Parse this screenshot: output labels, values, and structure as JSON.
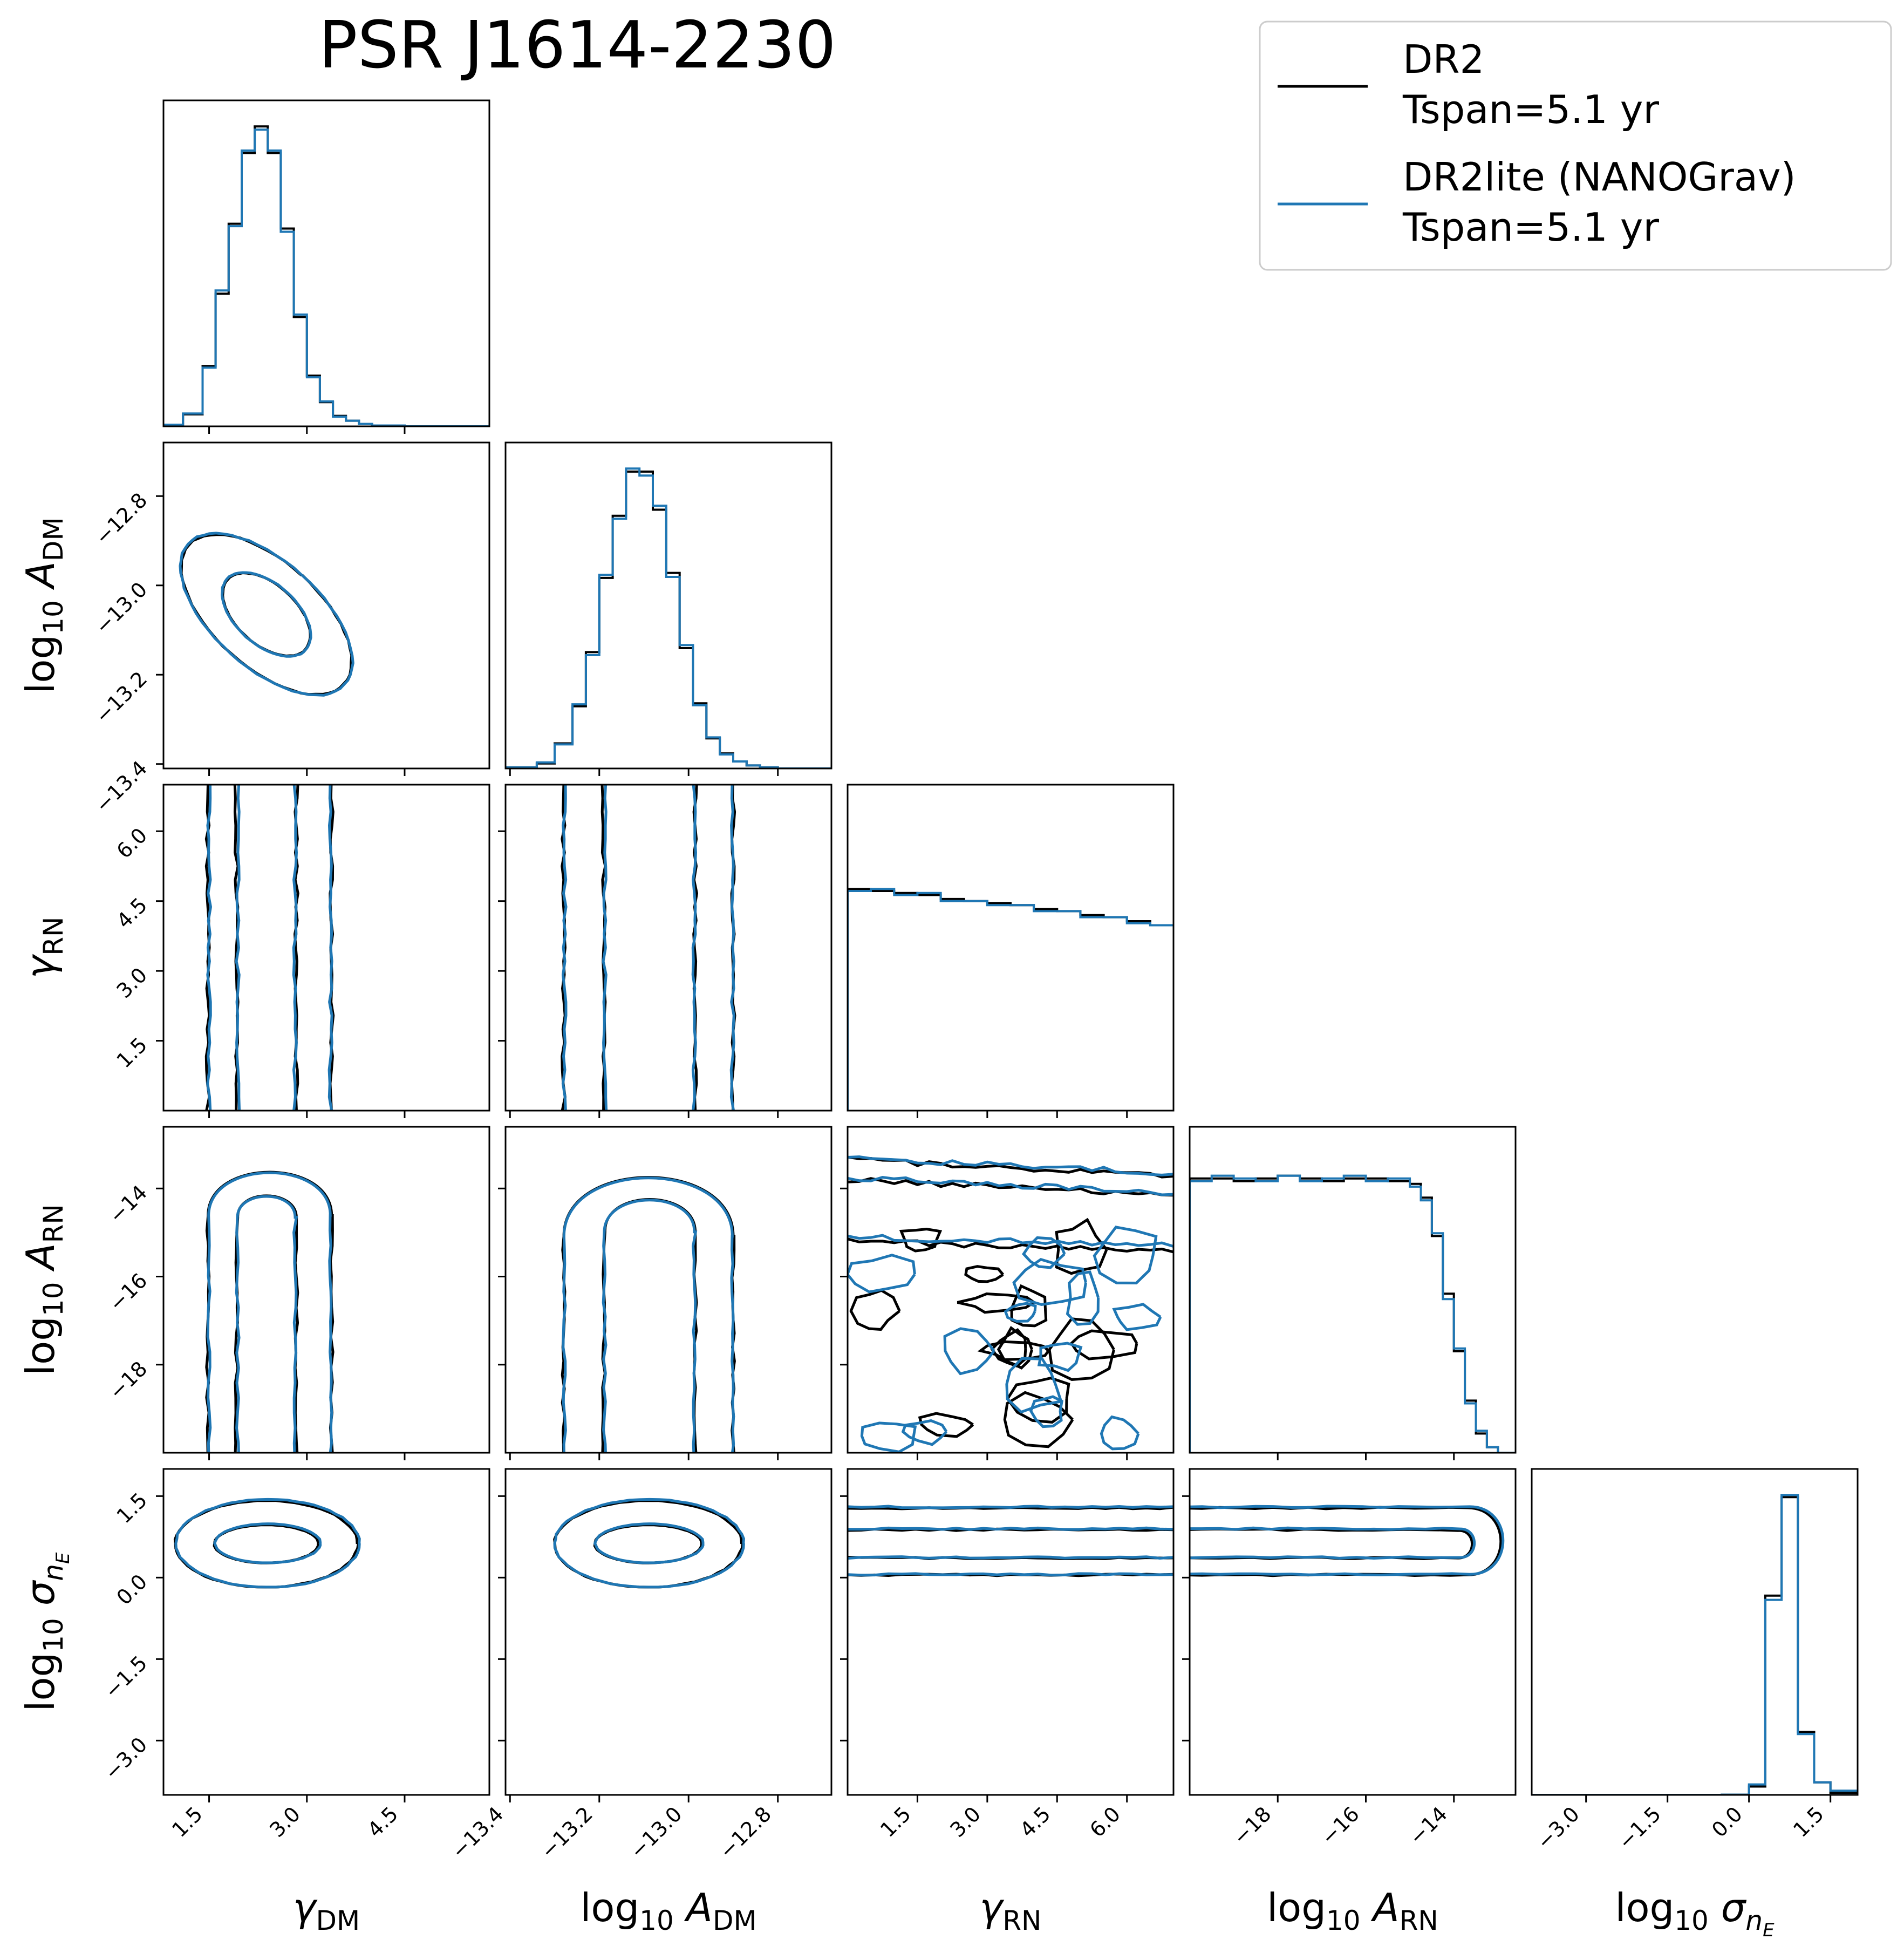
{
  "title": "PSR J1614-2230",
  "colors": {
    "dr2": "#000000",
    "dr2lite": "#1f77b4",
    "frame": "#000000",
    "legend_border": "#cccccc"
  },
  "legend": {
    "placement": "top-right",
    "entries": [
      {
        "series": "dr2",
        "line1": "DR2",
        "line2": "Tspan=5.1 yr"
      },
      {
        "series": "dr2lite",
        "line1": "DR2lite (NANOGrav)",
        "line2": "Tspan=5.1 yr"
      }
    ]
  },
  "chart_data": {
    "type": "corner",
    "grid": false,
    "parameters": [
      {
        "key": "gamma_dm",
        "label": "γDM",
        "range": [
          0.8,
          5.8
        ],
        "ticks": [
          "1.5",
          "3.0",
          "4.5"
        ],
        "tick_values": [
          1.5,
          3.0,
          4.5
        ]
      },
      {
        "key": "log10_A_dm",
        "label": "log10 ADM",
        "range": [
          -13.41,
          -12.68
        ],
        "ticks": [
          "−13.4",
          "−13.2",
          "−13.0",
          "−12.8"
        ],
        "tick_values": [
          -13.4,
          -13.2,
          -13.0,
          -12.8
        ]
      },
      {
        "key": "gamma_rn",
        "label": "γRN",
        "range": [
          0.0,
          7.0
        ],
        "ticks": [
          "1.5",
          "3.0",
          "4.5",
          "6.0"
        ],
        "tick_values": [
          1.5,
          3.0,
          4.5,
          6.0
        ]
      },
      {
        "key": "log10_A_rn",
        "label": "log10 ARN",
        "range": [
          -20.0,
          -12.6
        ],
        "ticks": [
          "−18",
          "−16",
          "−14"
        ],
        "tick_values": [
          -18,
          -16,
          -14
        ]
      },
      {
        "key": "log10_sigma_nE",
        "label": "log10 σnE",
        "range": [
          -4.0,
          2.0
        ],
        "ticks": [
          "−3.0",
          "−1.5",
          "0.0",
          "1.5"
        ],
        "tick_values": [
          -3.0,
          -1.5,
          0.0,
          1.5
        ]
      }
    ],
    "series": [
      {
        "key": "dr2",
        "hist": [
          {
            "bins": [
              0.8,
              1.1,
              1.4,
              1.6,
              1.8,
              2.0,
              2.2,
              2.4,
              2.6,
              2.8,
              3.0,
              3.2,
              3.4,
              3.6,
              3.8,
              4.0,
              4.5,
              5.8
            ],
            "values": [
              0.2,
              1.5,
              7.5,
              16.5,
              25.2,
              34.0,
              37.3,
              34.0,
              24.6,
              13.6,
              6.3,
              3.0,
              1.3,
              0.7,
              0.3,
              0.1,
              0.0
            ]
          },
          {
            "bins": [
              -13.41,
              -13.34,
              -13.3,
              -13.26,
              -13.23,
              -13.2,
              -13.17,
              -13.14,
              -13.11,
              -13.08,
              -13.05,
              -13.02,
              -12.99,
              -12.96,
              -12.93,
              -12.9,
              -12.87,
              -12.84,
              -12.8,
              -12.68
            ],
            "values": [
              0.1,
              0.5,
              2.5,
              6.2,
              11.6,
              19.0,
              25.2,
              29.6,
              29.6,
              25.8,
              19.5,
              12.0,
              6.5,
              3.0,
              1.5,
              0.7,
              0.3,
              0.1,
              0.0
            ]
          },
          {
            "bins": [
              0.0,
              0.5,
              1.0,
              1.5,
              2.0,
              2.5,
              3.0,
              3.5,
              4.0,
              4.5,
              5.0,
              5.5,
              6.0,
              6.5,
              7.0
            ],
            "values": [
              1.1,
              1.09,
              1.08,
              1.07,
              1.05,
              1.04,
              1.03,
              1.02,
              1.0,
              0.99,
              0.97,
              0.96,
              0.94,
              0.92
            ]
          },
          {
            "bins": [
              -20.0,
              -19.5,
              -19.0,
              -18.5,
              -18.0,
              -17.5,
              -17.0,
              -16.5,
              -16.0,
              -15.5,
              -15.0,
              -14.75,
              -14.5,
              -14.25,
              -14.0,
              -13.75,
              -13.5,
              -13.25,
              -13.0,
              -12.6
            ],
            "values": [
              1.0,
              1.0,
              0.99,
              1.0,
              1.01,
              1.0,
              0.99,
              1.0,
              1.0,
              0.99,
              0.98,
              0.93,
              0.79,
              0.58,
              0.37,
              0.19,
              0.07,
              0.02,
              0.0
            ]
          },
          {
            "bins": [
              -4.0,
              -2.0,
              -1.0,
              -0.5,
              0.0,
              0.3,
              0.6,
              0.9,
              1.2,
              1.5,
              2.0
            ],
            "values": [
              0.0,
              0.0,
              0.0,
              0.01,
              0.4,
              9.5,
              14.2,
              3.0,
              0.6,
              0.1
            ]
          }
        ],
        "contours": [
          {
            "row": 1,
            "col": 0,
            "ellipses": [
              {
                "cx": 2.38,
                "cy": -13.065,
                "ra": 0.92,
                "rb": 0.065,
                "rot": 48
              },
              {
                "cx": 2.38,
                "cy": -13.065,
                "ra": 1.62,
                "rb": 0.13,
                "rot": 48
              }
            ]
          },
          {
            "row": 2,
            "col": 0,
            "bands": [
              [
                1.92,
                2.84
              ],
              [
                1.48,
                3.38
              ]
            ]
          },
          {
            "row": 2,
            "col": 1,
            "bands": [
              [
                -13.19,
                -12.985
              ],
              [
                -13.28,
                -12.9
              ]
            ]
          },
          {
            "row": 3,
            "col": 0,
            "arches": [
              {
                "x": [
                  1.92,
                  2.84
                ],
                "top": -14.05
              },
              {
                "x": [
                  1.48,
                  3.38
                ],
                "top": -13.35
              }
            ]
          },
          {
            "row": 3,
            "col": 1,
            "arches": [
              {
                "x": [
                  -13.19,
                  -12.985
                ],
                "top": -14.05
              },
              {
                "x": [
                  -13.28,
                  -12.9
                ],
                "top": -13.35
              }
            ]
          },
          {
            "row": 3,
            "col": 2,
            "noisy": true,
            "upper": [
              -13.35,
              -13.8,
              -15.2
            ]
          },
          {
            "row": 4,
            "col": 0,
            "ellipses": [
              {
                "cx": 2.38,
                "cy": 0.62,
                "ra": 0.8,
                "rb": 0.35,
                "rot": 0
              },
              {
                "cx": 2.38,
                "cy": 0.62,
                "ra": 1.4,
                "rb": 0.8,
                "rot": 0
              }
            ]
          },
          {
            "row": 4,
            "col": 1,
            "ellipses": [
              {
                "cx": -13.09,
                "cy": 0.62,
                "ra": 0.12,
                "rb": 0.35,
                "rot": 0
              },
              {
                "cx": -13.09,
                "cy": 0.62,
                "ra": 0.21,
                "rb": 0.8,
                "rot": 0
              }
            ]
          },
          {
            "row": 4,
            "col": 2,
            "bands_h": [
              [
                0.36,
                0.88
              ],
              [
                0.05,
                1.28
              ]
            ]
          },
          {
            "row": 4,
            "col": 3,
            "lobes": [
              {
                "y": [
                  0.36,
                  0.88
                ],
                "end": -13.55
              },
              {
                "y": [
                  0.05,
                  1.28
                ],
                "end": -12.85
              }
            ]
          }
        ]
      },
      {
        "key": "dr2lite",
        "hist": [
          {
            "bins": [
              0.8,
              1.1,
              1.4,
              1.6,
              1.8,
              2.0,
              2.2,
              2.4,
              2.6,
              2.8,
              3.0,
              3.2,
              3.4,
              3.6,
              3.8,
              4.0,
              4.5,
              5.8
            ],
            "values": [
              0.2,
              1.6,
              7.3,
              16.9,
              24.9,
              34.3,
              36.9,
              34.3,
              24.2,
              13.9,
              6.1,
              3.1,
              1.2,
              0.7,
              0.3,
              0.1,
              0.0
            ]
          },
          {
            "bins": [
              -13.41,
              -13.34,
              -13.3,
              -13.26,
              -13.23,
              -13.2,
              -13.17,
              -13.14,
              -13.11,
              -13.08,
              -13.05,
              -13.02,
              -12.99,
              -12.96,
              -12.93,
              -12.9,
              -12.87,
              -12.84,
              -12.8,
              -12.68
            ],
            "values": [
              0.1,
              0.6,
              2.4,
              6.4,
              11.3,
              19.3,
              24.9,
              29.9,
              29.2,
              26.2,
              19.1,
              12.3,
              6.3,
              3.1,
              1.4,
              0.7,
              0.3,
              0.1,
              0.0
            ]
          },
          {
            "bins": [
              0.0,
              0.5,
              1.0,
              1.5,
              2.0,
              2.5,
              3.0,
              3.5,
              4.0,
              4.5,
              5.0,
              5.5,
              6.0,
              6.5,
              7.0
            ],
            "values": [
              1.09,
              1.1,
              1.07,
              1.08,
              1.04,
              1.04,
              1.02,
              1.02,
              0.99,
              0.99,
              0.96,
              0.96,
              0.93,
              0.92
            ]
          },
          {
            "bins": [
              -20.0,
              -19.5,
              -19.0,
              -18.5,
              -18.0,
              -17.5,
              -17.0,
              -16.5,
              -16.0,
              -15.5,
              -15.0,
              -14.75,
              -14.5,
              -14.25,
              -14.0,
              -13.75,
              -13.5,
              -13.25,
              -13.0,
              -12.6
            ],
            "values": [
              0.99,
              1.01,
              1.0,
              0.99,
              1.01,
              0.99,
              1.0,
              1.01,
              0.99,
              1.0,
              0.97,
              0.92,
              0.8,
              0.56,
              0.38,
              0.18,
              0.08,
              0.02,
              0.0
            ]
          },
          {
            "bins": [
              -4.0,
              -2.0,
              -1.0,
              -0.5,
              0.0,
              0.3,
              0.6,
              0.9,
              1.2,
              1.5,
              2.0
            ],
            "values": [
              0.0,
              0.0,
              0.0,
              0.01,
              0.5,
              9.3,
              14.3,
              2.9,
              0.6,
              0.2
            ]
          }
        ],
        "contours": [
          {
            "row": 1,
            "col": 0,
            "ellipses": [
              {
                "cx": 2.38,
                "cy": -13.065,
                "ra": 0.93,
                "rb": 0.066,
                "rot": 48
              },
              {
                "cx": 2.38,
                "cy": -13.065,
                "ra": 1.63,
                "rb": 0.131,
                "rot": 48
              }
            ]
          },
          {
            "row": 2,
            "col": 0,
            "bands": [
              [
                1.94,
                2.82
              ],
              [
                1.5,
                3.36
              ]
            ]
          },
          {
            "row": 2,
            "col": 1,
            "bands": [
              [
                -13.188,
                -12.987
              ],
              [
                -13.278,
                -12.902
              ]
            ]
          },
          {
            "row": 3,
            "col": 0,
            "arches": [
              {
                "x": [
                  1.94,
                  2.82
                ],
                "top": -14.07
              },
              {
                "x": [
                  1.5,
                  3.36
                ],
                "top": -13.37
              }
            ]
          },
          {
            "row": 3,
            "col": 1,
            "arches": [
              {
                "x": [
                  -13.188,
                  -12.987
                ],
                "top": -14.07
              },
              {
                "x": [
                  -13.278,
                  -12.902
                ],
                "top": -13.37
              }
            ]
          },
          {
            "row": 3,
            "col": 2,
            "noisy": true,
            "upper": [
              -13.3,
              -13.75,
              -15.1
            ]
          },
          {
            "row": 4,
            "col": 0,
            "ellipses": [
              {
                "cx": 2.4,
                "cy": 0.63,
                "ra": 0.81,
                "rb": 0.36,
                "rot": 0
              },
              {
                "cx": 2.4,
                "cy": 0.63,
                "ra": 1.41,
                "rb": 0.81,
                "rot": 0
              }
            ]
          },
          {
            "row": 4,
            "col": 1,
            "ellipses": [
              {
                "cx": -13.088,
                "cy": 0.63,
                "ra": 0.121,
                "rb": 0.36,
                "rot": 0
              },
              {
                "cx": -13.088,
                "cy": 0.63,
                "ra": 0.212,
                "rb": 0.81,
                "rot": 0
              }
            ]
          },
          {
            "row": 4,
            "col": 2,
            "bands_h": [
              [
                0.37,
                0.9
              ],
              [
                0.06,
                1.3
              ]
            ]
          },
          {
            "row": 4,
            "col": 3,
            "lobes": [
              {
                "y": [
                  0.37,
                  0.9
                ],
                "end": -13.5
              },
              {
                "y": [
                  0.06,
                  1.3
                ],
                "end": -12.8
              }
            ]
          }
        ]
      }
    ]
  }
}
